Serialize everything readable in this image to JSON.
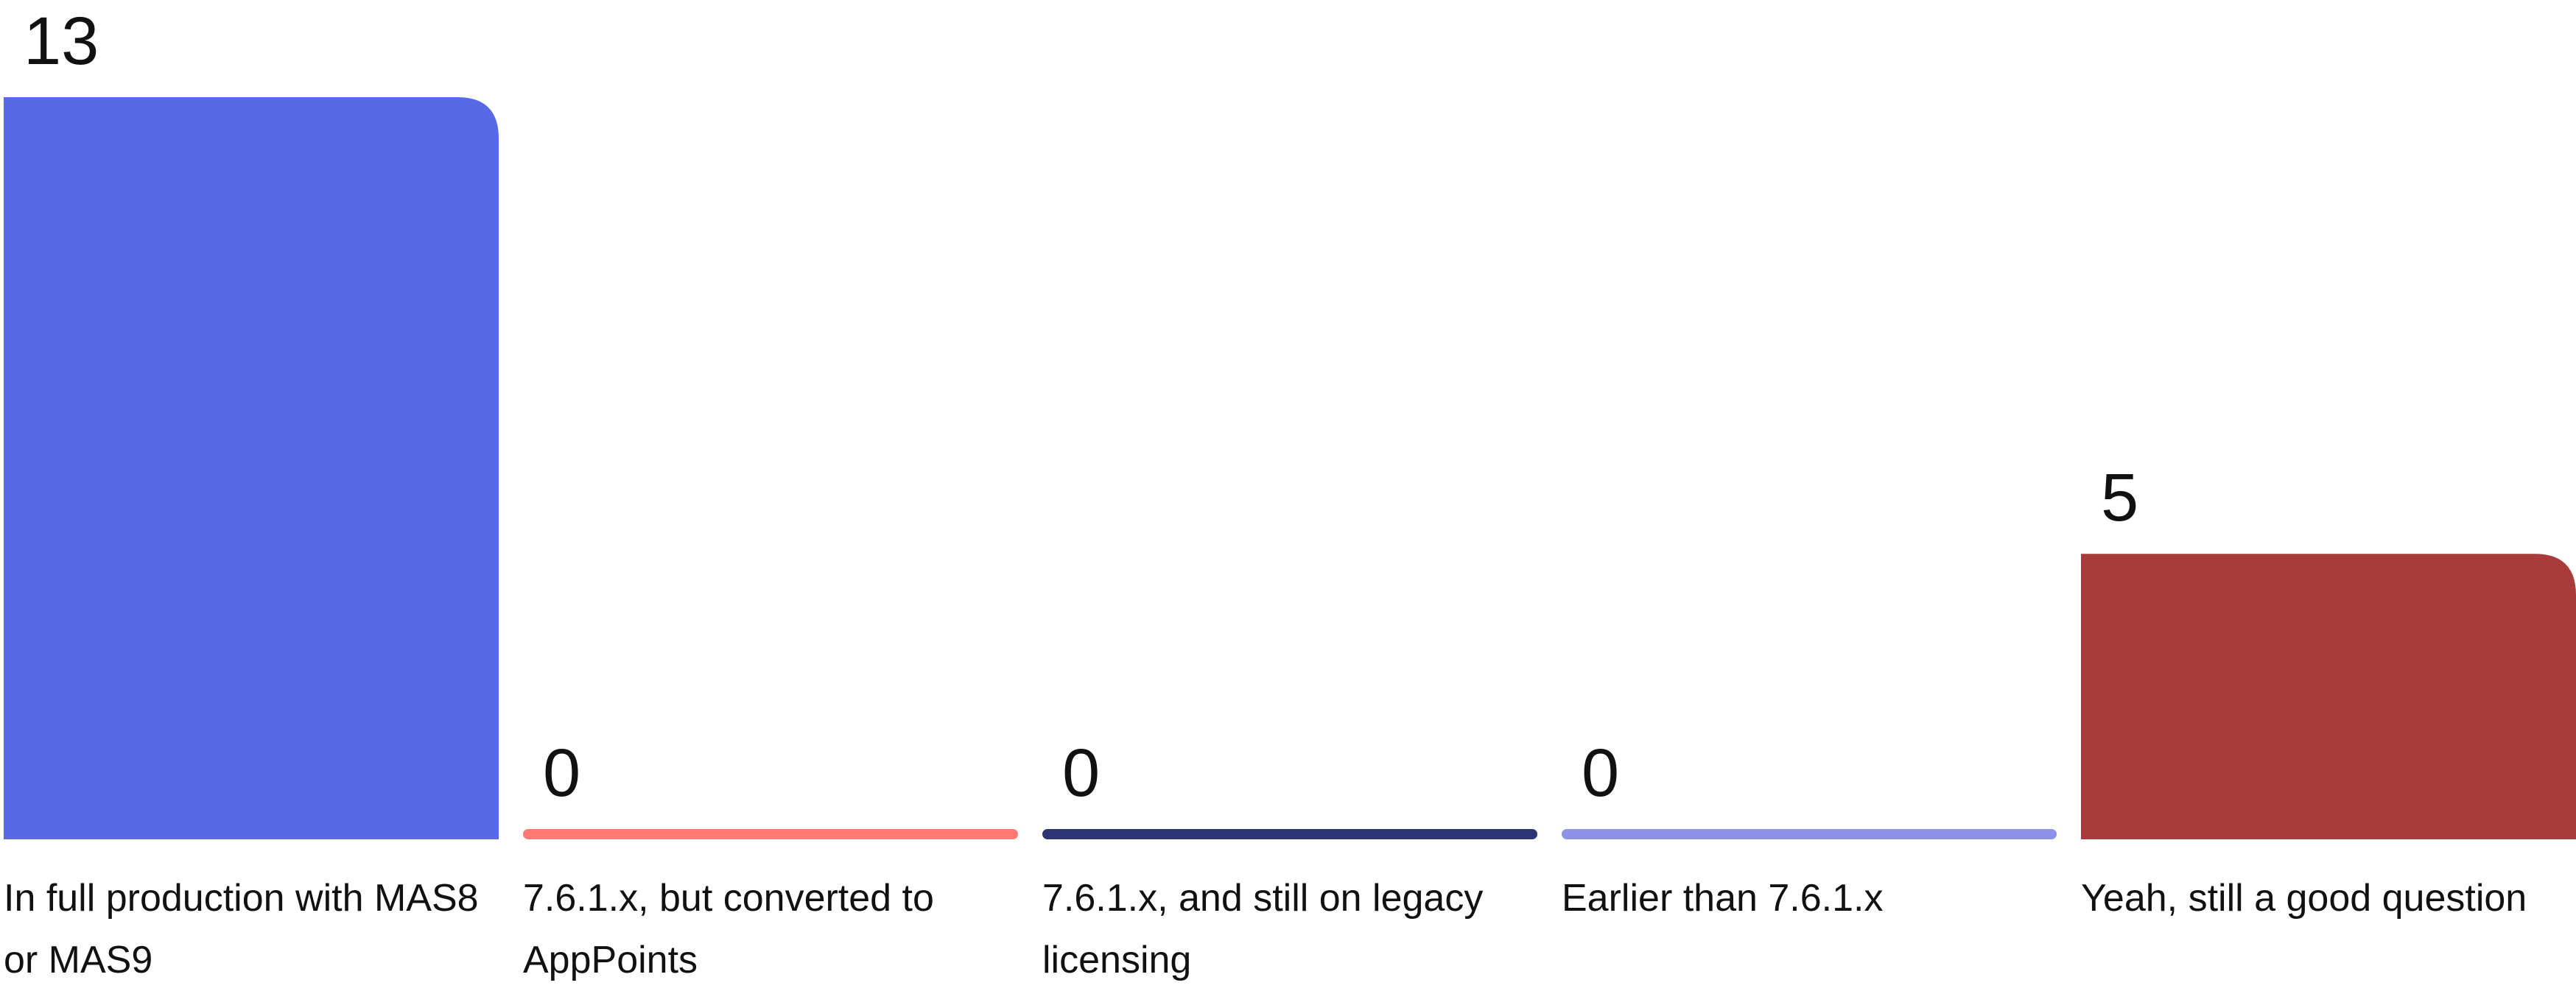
{
  "chart_data": {
    "type": "bar",
    "categories": [
      "In full production with MAS8 or MAS9",
      "7.6.1.x, but converted to AppPoints",
      "7.6.1.x, and still on legacy licensing",
      "Earlier than 7.6.1.x",
      "Yeah, still a good question"
    ],
    "values": [
      13,
      0,
      0,
      0,
      5
    ],
    "value_labels": [
      "13",
      "0",
      "0",
      "0",
      "5"
    ],
    "colors": [
      "#5869E6",
      "#FF7A73",
      "#2D3577",
      "#8E91E8",
      "#A93B3A"
    ],
    "title": "",
    "xlabel": "",
    "ylabel": "",
    "ylim": [
      0,
      13
    ],
    "grid": false
  }
}
